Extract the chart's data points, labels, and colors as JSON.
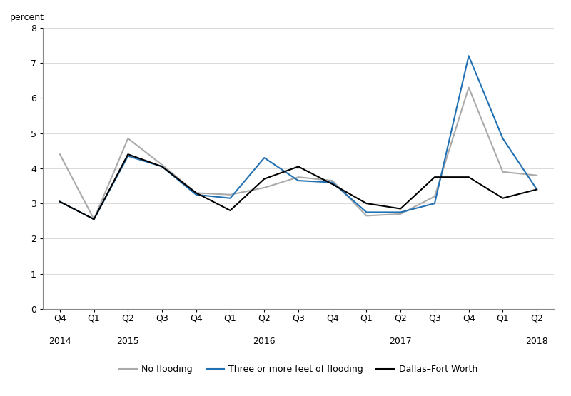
{
  "ylabel": "percent",
  "ylim": [
    0,
    8
  ],
  "yticks": [
    0,
    1,
    2,
    3,
    4,
    5,
    6,
    7,
    8
  ],
  "quarters": [
    "Q4",
    "Q1",
    "Q2",
    "Q3",
    "Q4",
    "Q1",
    "Q2",
    "Q3",
    "Q4",
    "Q1",
    "Q2",
    "Q3",
    "Q4",
    "Q1",
    "Q2"
  ],
  "year_positions": [
    0,
    2,
    6,
    10,
    14
  ],
  "years": [
    "2014",
    "2015",
    "2016",
    "2017",
    "2018"
  ],
  "no_flooding": [
    4.4,
    2.55,
    4.85,
    4.1,
    3.3,
    3.25,
    3.45,
    3.75,
    3.65,
    2.65,
    2.7,
    3.2,
    6.3,
    3.9,
    3.8
  ],
  "three_or_more": [
    3.05,
    2.55,
    4.35,
    4.05,
    3.25,
    3.15,
    4.3,
    3.65,
    3.6,
    2.75,
    2.75,
    3.0,
    7.2,
    4.85,
    3.4
  ],
  "dallas_fort_worth": [
    3.05,
    2.55,
    4.4,
    4.05,
    3.3,
    2.8,
    3.7,
    4.05,
    3.55,
    3.0,
    2.85,
    3.75,
    3.75,
    3.15,
    3.4
  ],
  "no_flooding_color": "#aaaaaa",
  "three_or_more_color": "#2271b3",
  "dallas_fort_worth_color": "#000000",
  "line_width": 1.5,
  "background_color": "#ffffff",
  "legend_labels": [
    "No flooding",
    "Three or more feet of flooding",
    "Dallas–Fort Worth"
  ],
  "legend_colors": [
    "#aaaaaa",
    "#2271b3",
    "#000000"
  ],
  "ylabel_fontsize": 9,
  "tick_fontsize": 9,
  "legend_fontsize": 9
}
